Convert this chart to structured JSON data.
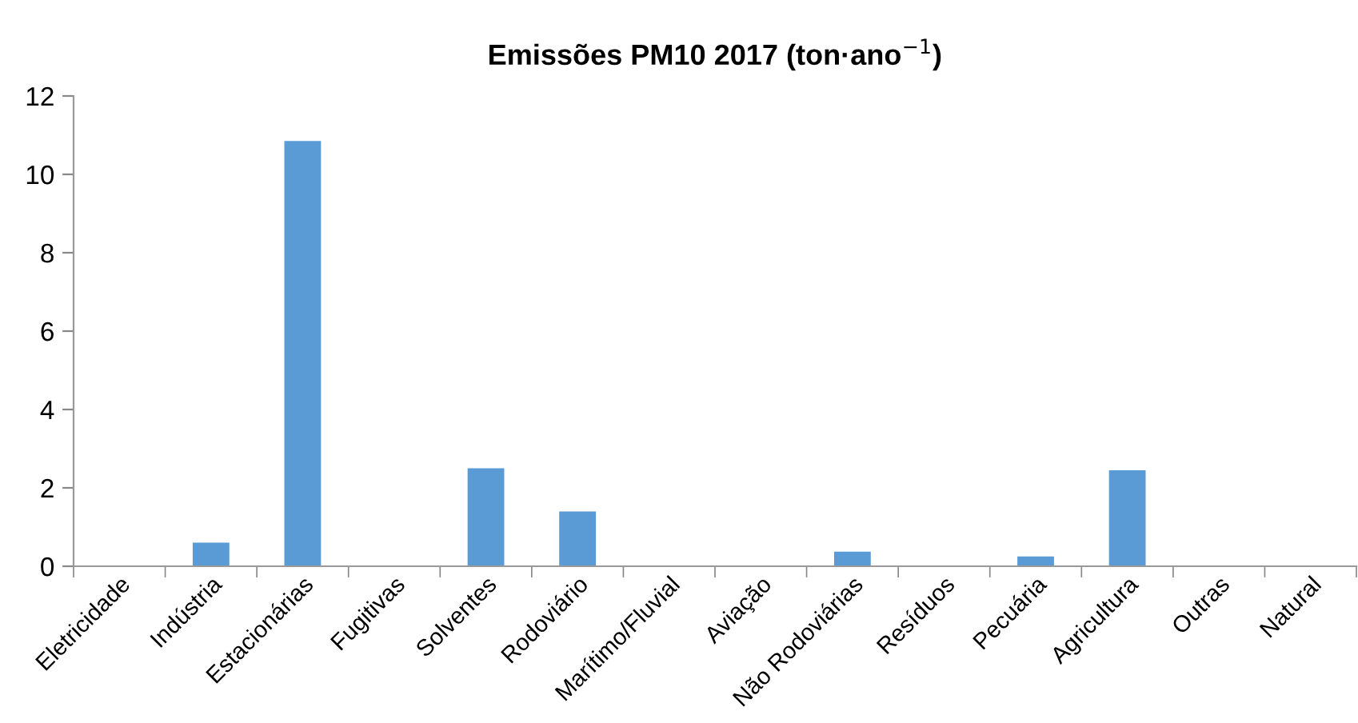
{
  "chart_data": {
    "type": "bar",
    "title": "Emissões PM10 2017 (ton·ano$^{−1}$)",
    "categories": [
      "Eletricidade",
      "Indústria",
      "Estacionárias",
      "Fugitivas",
      "Solventes",
      "Rodoviário",
      "Marítimo/Fluvial",
      "Aviação",
      "Não Rodoviárias",
      "Resíduos",
      "Pecuária",
      "Agricultura",
      "Outras",
      "Natural"
    ],
    "values": [
      0,
      0.6,
      10.85,
      0,
      2.5,
      1.4,
      0,
      0,
      0.37,
      0,
      0.25,
      2.45,
      0,
      0
    ],
    "color": "#5b9bd5",
    "ylim": [
      0,
      12
    ],
    "yticks": [
      0,
      2,
      4,
      6,
      8,
      10,
      12
    ],
    "grid": false,
    "legend": false
  }
}
